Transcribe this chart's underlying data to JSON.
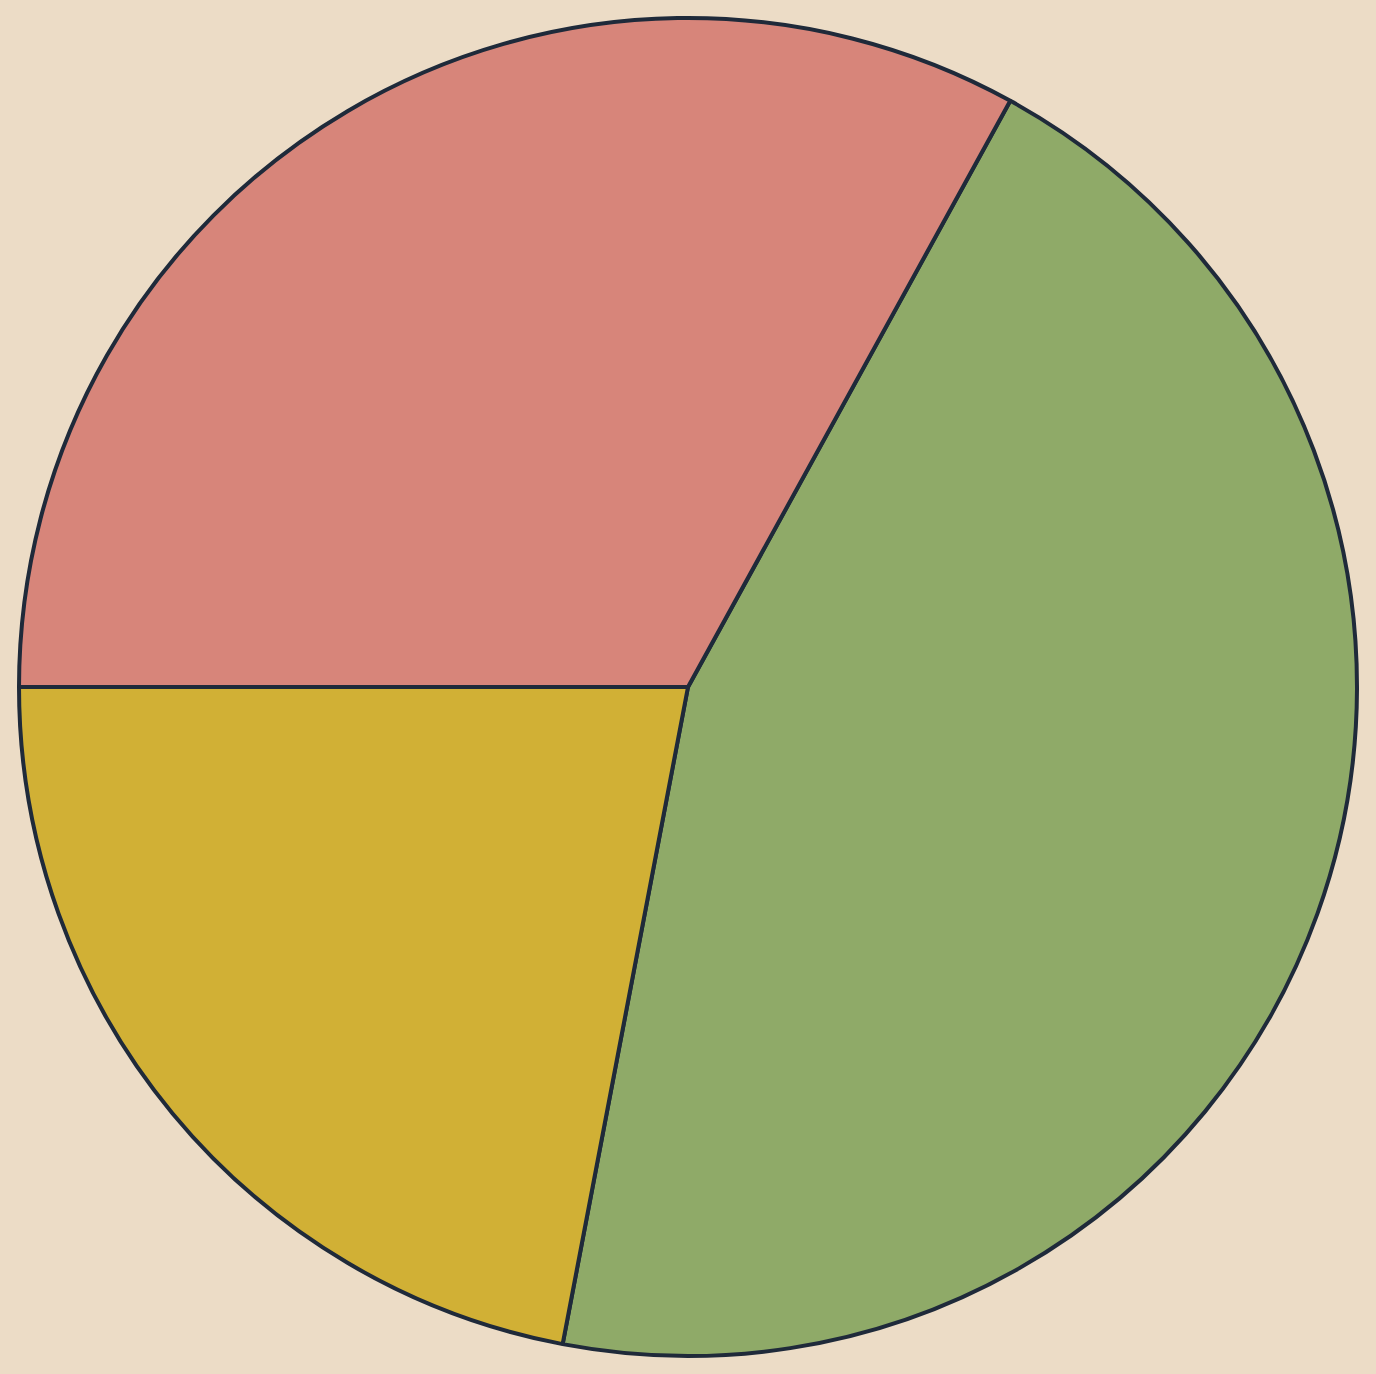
{
  "chart_data": {
    "type": "pie",
    "categories": [
      null,
      null,
      null
    ],
    "values": [
      45,
      22,
      33
    ],
    "colors": [
      "#8faa68",
      "#d1b035",
      "#d7857a"
    ]
  }
}
